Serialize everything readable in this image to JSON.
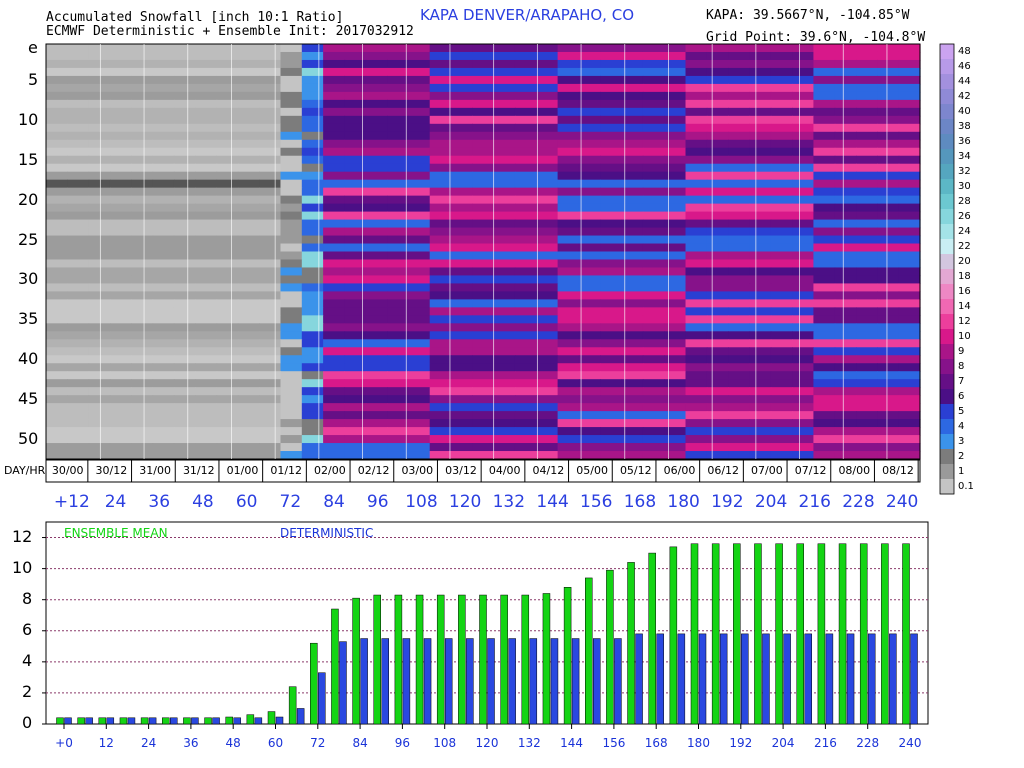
{
  "header": {
    "title_line1": "Accumulated Snowfall [inch 10:1 Ratio]",
    "title_line2": "ECMWF Deterministic + Ensemble Init: 2017032912",
    "station": "KAPA DENVER/ARAPAHO, CO",
    "kapa_coords": "KAPA: 39.5667°N, -104.85°W",
    "grid_point": "Grid Point: 39.6°N, -104.8°W"
  },
  "chart_data": [
    {
      "type": "heatmap",
      "title": "Accumulated Snowfall [inch 10:1 Ratio]",
      "ylabel_first": "e",
      "y_ticks": [
        "e",
        "5",
        "10",
        "15",
        "20",
        "25",
        "30",
        "35",
        "40",
        "45",
        "50"
      ],
      "day_hr_label": "DAY/HR",
      "day_hr_ticks": [
        "30/00",
        "30/12",
        "31/00",
        "31/12",
        "01/00",
        "01/12",
        "02/00",
        "02/12",
        "03/00",
        "03/12",
        "04/00",
        "04/12",
        "05/00",
        "05/12",
        "06/00",
        "06/12",
        "07/00",
        "07/12",
        "08/00",
        "08/12"
      ],
      "lead_ticks": [
        "+12",
        "24",
        "36",
        "48",
        "60",
        "72",
        "84",
        "96",
        "108",
        "120",
        "132",
        "144",
        "156",
        "168",
        "180",
        "192",
        "204",
        "216",
        "228",
        "240"
      ],
      "colorbar_labels": [
        "48",
        "46",
        "44",
        "42",
        "40",
        "38",
        "36",
        "34",
        "32",
        "30",
        "28",
        "26",
        "24",
        "22",
        "20",
        "18",
        "16",
        "14",
        "12",
        "10",
        "9",
        "8",
        "7",
        "6",
        "5",
        "4",
        "3",
        "2",
        "1",
        "0.1"
      ],
      "colorbar_colors": [
        "#cba3f0",
        "#b79ae8",
        "#a390de",
        "#8f8ad6",
        "#7d86ce",
        "#6c86c6",
        "#5e8bc0",
        "#5597bd",
        "#55a6bf",
        "#5cb7c6",
        "#6cc8d1",
        "#86d6dd",
        "#a4e3e8",
        "#c9eef3",
        "#d3c6df",
        "#e3a8d3",
        "#ee87c4",
        "#f168b3",
        "#ec3e9c",
        "#d8188a",
        "#a91588",
        "#86128a",
        "#650f86",
        "#4b0f86",
        "#2a3fd3",
        "#2d68e2",
        "#3b93ea",
        "#7c7c7c",
        "#9a9a9a",
        "#c4c4c4"
      ]
    },
    {
      "type": "bar",
      "title": "",
      "xlabel": "",
      "ylabel": "",
      "x": [
        0,
        6,
        12,
        18,
        24,
        30,
        36,
        42,
        48,
        54,
        60,
        66,
        72,
        78,
        84,
        90,
        96,
        102,
        108,
        114,
        120,
        126,
        132,
        138,
        144,
        150,
        156,
        162,
        168,
        174,
        180,
        186,
        192,
        198,
        204,
        210,
        216,
        222,
        228,
        234,
        240
      ],
      "x_tick_labels": [
        "+0",
        "12",
        "24",
        "36",
        "48",
        "60",
        "72",
        "84",
        "96",
        "108",
        "120",
        "132",
        "144",
        "156",
        "168",
        "180",
        "192",
        "204",
        "216",
        "228",
        "240"
      ],
      "ylim": [
        0,
        13
      ],
      "y_ticks": [
        0,
        2,
        4,
        6,
        8,
        10,
        12
      ],
      "series": [
        {
          "name": "ENSEMBLE MEAN",
          "color": "#14d414",
          "values": [
            0.4,
            0.4,
            0.4,
            0.4,
            0.4,
            0.4,
            0.4,
            0.4,
            0.45,
            0.6,
            0.8,
            2.4,
            5.2,
            7.4,
            8.1,
            8.3,
            8.3,
            8.3,
            8.3,
            8.3,
            8.3,
            8.3,
            8.3,
            8.4,
            8.8,
            9.4,
            9.9,
            10.4,
            11.0,
            11.4,
            11.6,
            11.6,
            11.6,
            11.6,
            11.6,
            11.6,
            11.6,
            11.6,
            11.6,
            11.6,
            11.6
          ]
        },
        {
          "name": "DETERMINISTIC",
          "color": "#2a48e0",
          "values": [
            0.4,
            0.4,
            0.4,
            0.4,
            0.4,
            0.4,
            0.4,
            0.4,
            0.4,
            0.4,
            0.45,
            1.0,
            3.3,
            5.3,
            5.5,
            5.5,
            5.5,
            5.5,
            5.5,
            5.5,
            5.5,
            5.5,
            5.5,
            5.5,
            5.5,
            5.5,
            5.5,
            5.8,
            5.8,
            5.8,
            5.8,
            5.8,
            5.8,
            5.8,
            5.8,
            5.8,
            5.8,
            5.8,
            5.8,
            5.8,
            5.8
          ]
        }
      ]
    }
  ]
}
